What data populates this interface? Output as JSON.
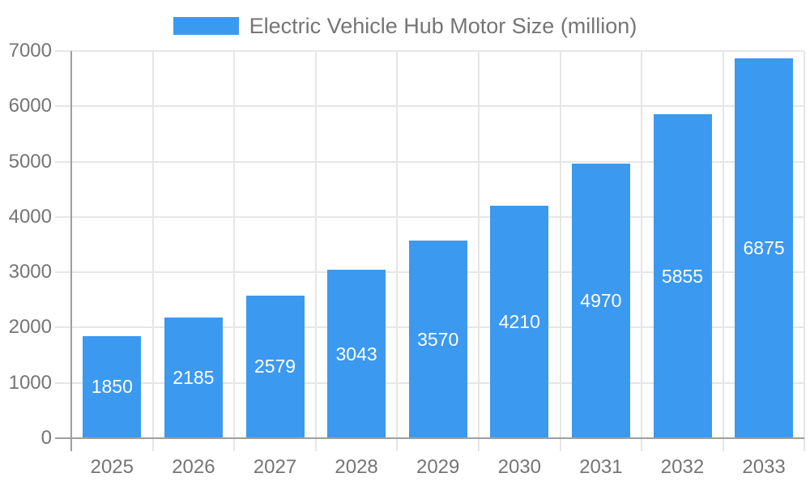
{
  "chart_data": {
    "type": "bar",
    "title": "Electric Vehicle Hub Motor Size (million)",
    "categories": [
      "2025",
      "2026",
      "2027",
      "2028",
      "2029",
      "2030",
      "2031",
      "2032",
      "2033"
    ],
    "values": [
      1850,
      2185,
      2579,
      3043,
      3570,
      4210,
      4970,
      5855,
      6875
    ],
    "series": [
      {
        "name": "Electric Vehicle Hub Motor Size (million)",
        "values": [
          1850,
          2185,
          2579,
          3043,
          3570,
          4210,
          4970,
          5855,
          6875
        ]
      }
    ],
    "xlabel": "",
    "ylabel": "",
    "ylim": [
      0,
      7000
    ],
    "ytick_interval": 1000,
    "ytick_labels": [
      "0",
      "1000",
      "2000",
      "3000",
      "4000",
      "5000",
      "6000",
      "7000"
    ],
    "grid": true,
    "legend_position": "top-center",
    "value_label_position": "inside-center",
    "colors": {
      "bar": "#3C99F0",
      "axis_text": "#757575",
      "value_text": "#FFFFFF",
      "grid_line": "#E6E6E6",
      "axis_line": "#9E9E9E",
      "background": "#FFFFFF"
    }
  }
}
